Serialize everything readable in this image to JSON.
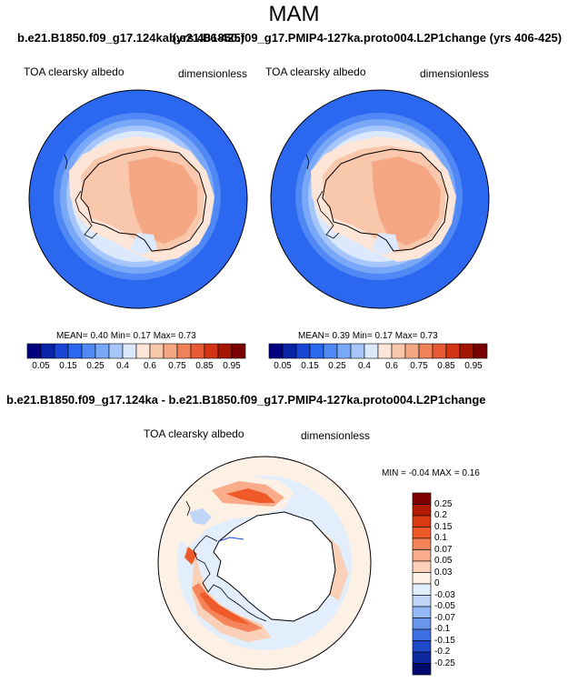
{
  "season": "MAM",
  "top_title_left": "b.e21.B1850.f09_g17.124ka (yrs 406-425)",
  "top_title_right": "b.e21.B1850.f09_g17.PMIP4-127ka.proto004.L2P1change (yrs 406-425)",
  "panels": [
    {
      "variable": "TOA clearsky albedo",
      "units": "dimensionless",
      "stats": "MEAN=  0.40  Min=  0.17  Max=  0.73"
    },
    {
      "variable": "TOA clearsky albedo",
      "units": "dimensionless",
      "stats": "MEAN=  0.39  Min=  0.17  Max=  0.73"
    }
  ],
  "diff_title": "b.e21.B1850.f09_g17.124ka - b.e21.B1850.f09_g17.PMIP4-127ka.proto004.L2P1change",
  "diff_panel": {
    "variable": "TOA clearsky albedo",
    "units": "dimensionless",
    "stats": "MIN =  -0.04 MAX =   0.16"
  },
  "colorbar_top": {
    "labels": [
      "0.05",
      "0.15",
      "0.25",
      "0.4",
      "0.6",
      "0.75",
      "0.85",
      "0.95"
    ],
    "colors": [
      "#000080",
      "#0a24a8",
      "#1a46d6",
      "#2c68ef",
      "#5088f5",
      "#7aa8f8",
      "#a6c6fb",
      "#dce9fd",
      "#fde6d8",
      "#f9c7ac",
      "#f5a783",
      "#f0825a",
      "#e85a33",
      "#d23415",
      "#a31600",
      "#7a0000"
    ]
  },
  "colorbar_diff": {
    "labels": [
      "0.25",
      "0.2",
      "0.15",
      "0.1",
      "0.07",
      "0.05",
      "0.03",
      "0",
      "-0.03",
      "-0.05",
      "-0.07",
      "-0.1",
      "-0.15",
      "-0.2",
      "-0.25"
    ],
    "colors": [
      "#7f0000",
      "#b31b00",
      "#d93a12",
      "#ef5a2a",
      "#f5845a",
      "#f9ab8a",
      "#fbd0b8",
      "#fdf0e4",
      "#e2eefc",
      "#bfd6f8",
      "#93b8f3",
      "#6a95ec",
      "#3e6fe0",
      "#1f49c8",
      "#0c2a9e",
      "#000a6e"
    ]
  }
}
